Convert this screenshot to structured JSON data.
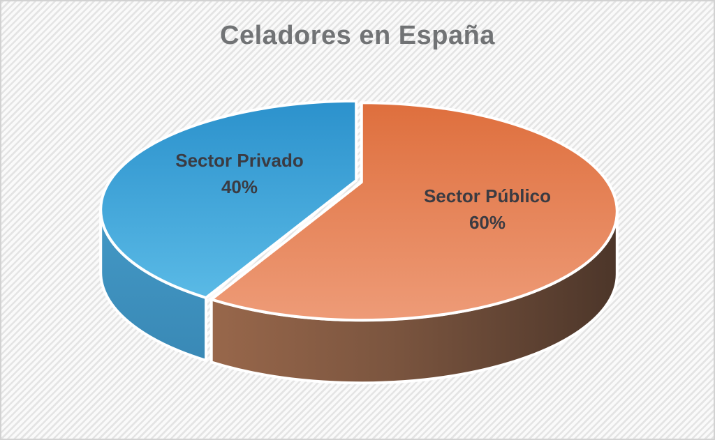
{
  "title": "Celadores en España",
  "colors": {
    "title_text": "#717375",
    "slice_label_text": "#3B3B42",
    "slice_outline": "#FFFFFF",
    "background_stripe": "#E4E4E4",
    "background_base": "#FAFAFA",
    "frame_border": "#D2D2D2"
  },
  "chart_data": {
    "type": "pie",
    "style": "3d",
    "title": "Celadores en España",
    "start_angle_deg": 90,
    "direction": "counterclockwise",
    "legend": "none",
    "slices": [
      {
        "label": "Sector Privado",
        "value": 40,
        "pct_label": "40%",
        "top_colors": [
          "#2B91CC",
          "#70CDF2"
        ],
        "side_colors": [
          "#4BA3D0",
          "#3786B3"
        ],
        "side_gradient_dir": "vertical"
      },
      {
        "label": "Sector Público",
        "value": 60,
        "pct_label": "60%",
        "top_colors": [
          "#DE6E3C",
          "#F3AA8B"
        ],
        "side_colors": [
          "#A06C4E",
          "#7B553F",
          "#4B3529"
        ],
        "side_gradient_dir": "horizontal"
      }
    ]
  }
}
